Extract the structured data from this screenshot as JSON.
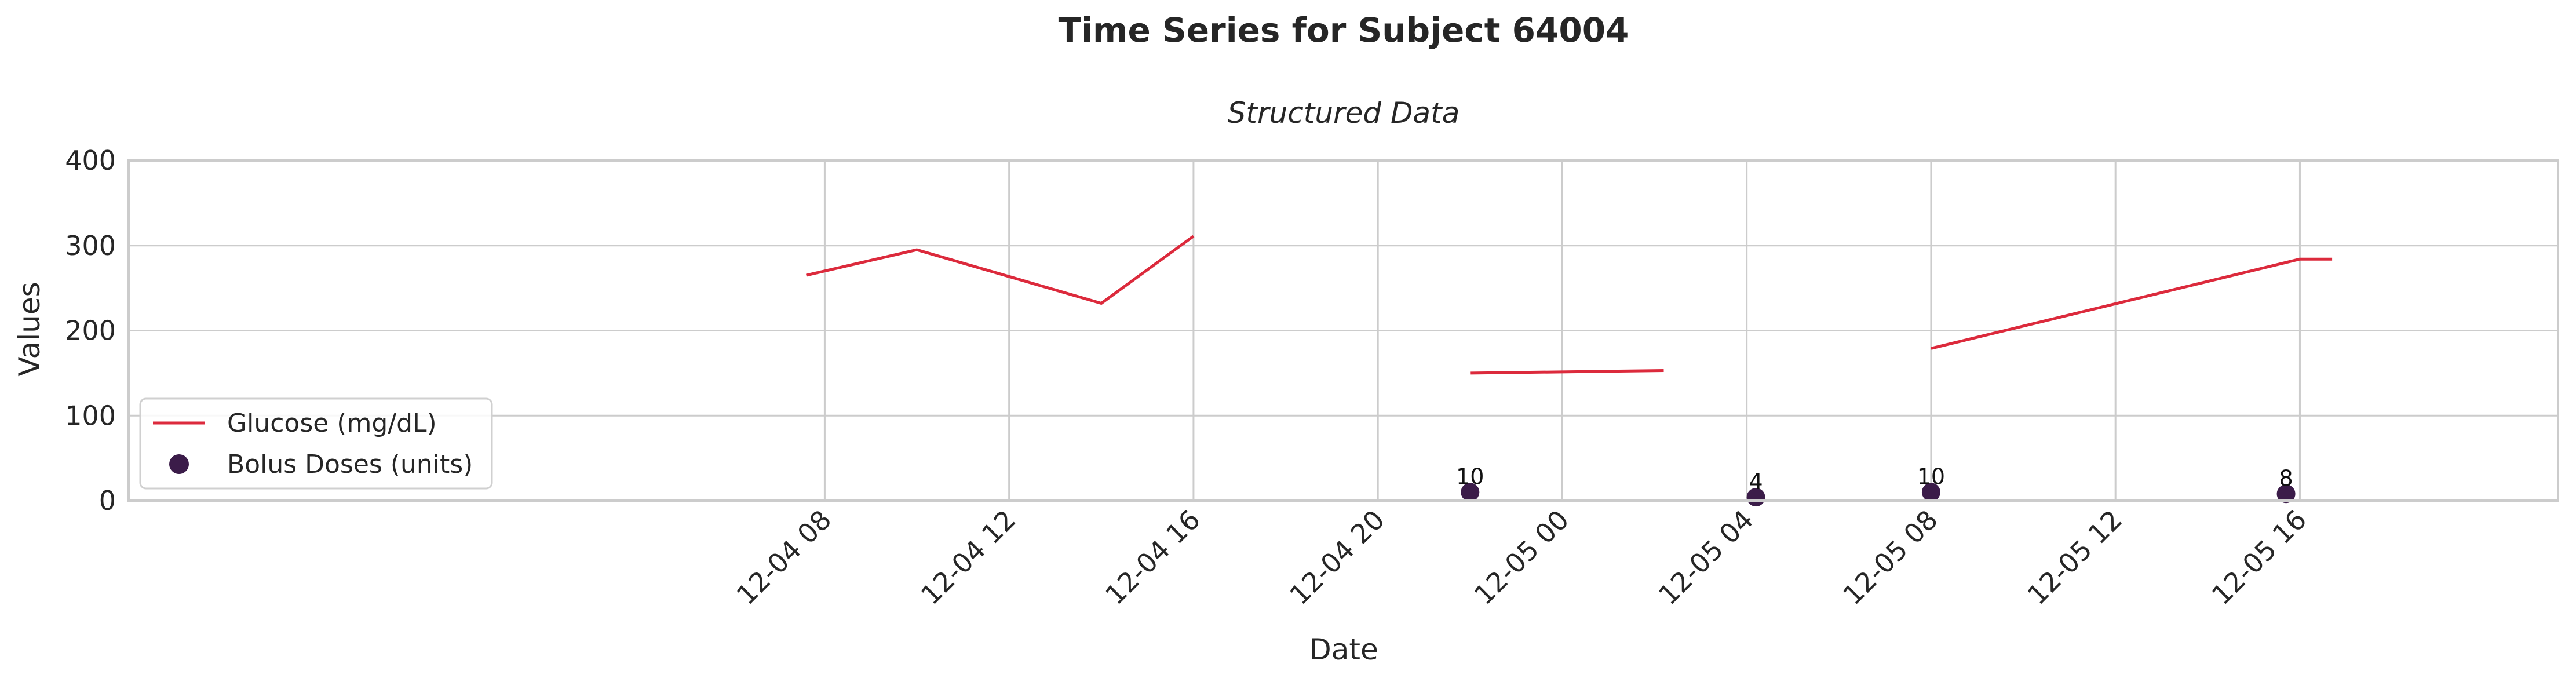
{
  "chart_data": {
    "type": "line",
    "title": "Time Series for Subject 64004",
    "subtitle": "Structured Data",
    "xlabel": "Date",
    "ylabel": "Values",
    "ylim": [
      0,
      400
    ],
    "xlim_hours": [
      -7.1,
      45.6
    ],
    "x_axis_origin": "12-04 00:00",
    "yticks": [
      0,
      100,
      200,
      300,
      400
    ],
    "xticks": [
      {
        "label": "12-04 08",
        "hour": 8
      },
      {
        "label": "12-04 12",
        "hour": 12
      },
      {
        "label": "12-04 16",
        "hour": 16
      },
      {
        "label": "12-04 20",
        "hour": 20
      },
      {
        "label": "12-05 00",
        "hour": 24
      },
      {
        "label": "12-05 04",
        "hour": 28
      },
      {
        "label": "12-05 08",
        "hour": 32
      },
      {
        "label": "12-05 12",
        "hour": 36
      },
      {
        "label": "12-05 16",
        "hour": 40
      }
    ],
    "glucose": {
      "name": "Glucose (mg/dL)",
      "color": "#dc2a3c",
      "segments": [
        [
          {
            "hour": 7.6,
            "value": 265
          },
          {
            "hour": 10.0,
            "value": 295
          },
          {
            "hour": 14.0,
            "value": 232
          },
          {
            "hour": 16.0,
            "value": 311
          }
        ],
        [
          {
            "hour": 22.0,
            "value": 150
          },
          {
            "hour": 26.2,
            "value": 153
          }
        ],
        [
          {
            "hour": 32.0,
            "value": 179
          },
          {
            "hour": 40.0,
            "value": 284
          },
          {
            "hour": 40.7,
            "value": 284
          }
        ]
      ]
    },
    "bolus": {
      "name": "Bolus Doses (units)",
      "color": "#3b1c49",
      "points": [
        {
          "hour": 22.0,
          "value": 10,
          "label": "10"
        },
        {
          "hour": 28.2,
          "value": 4,
          "label": "4"
        },
        {
          "hour": 32.0,
          "value": 10,
          "label": "10"
        },
        {
          "hour": 39.7,
          "value": 8,
          "label": "8"
        }
      ]
    },
    "legend_position": "lower-left",
    "grid": true
  }
}
